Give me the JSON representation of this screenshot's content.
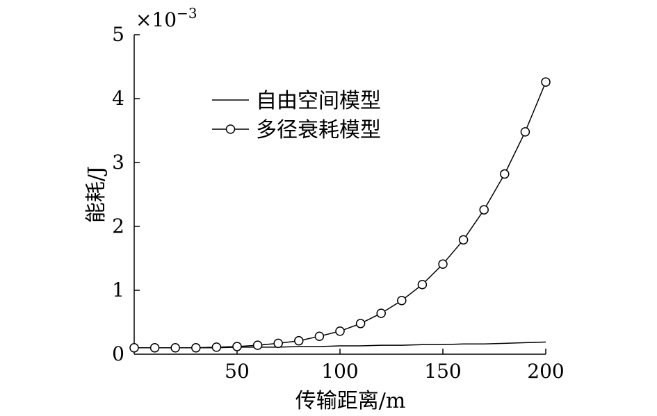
{
  "chart_data": {
    "type": "line",
    "xlabel": "传输距离/m",
    "ylabel": "能耗/J",
    "y_multiplier": "×10",
    "y_multiplier_exponent": "−3",
    "xlim": [
      0,
      200
    ],
    "ylim": [
      0,
      5
    ],
    "x_ticks": [
      50,
      100,
      150,
      200
    ],
    "x_tick_labels": [
      "50",
      "100",
      "150",
      "200"
    ],
    "y_ticks": [
      0,
      1,
      2,
      3,
      4,
      5
    ],
    "y_tick_labels": [
      "0",
      "1",
      "2",
      "3",
      "4",
      "5"
    ],
    "grid": false,
    "legend_position": "upper-left",
    "series": [
      {
        "name": "自由空间模型",
        "marker": "none",
        "color": "#000000",
        "x": [
          0,
          10,
          20,
          30,
          40,
          50,
          60,
          70,
          80,
          90,
          100,
          110,
          120,
          130,
          140,
          150,
          160,
          170,
          180,
          190,
          200
        ],
        "values": [
          0.1,
          0.1,
          0.1,
          0.1,
          0.1,
          0.11,
          0.11,
          0.11,
          0.12,
          0.12,
          0.13,
          0.13,
          0.14,
          0.14,
          0.15,
          0.15,
          0.16,
          0.16,
          0.17,
          0.18,
          0.19
        ]
      },
      {
        "name": "多径衰耗模型",
        "marker": "circle",
        "color": "#000000",
        "x": [
          0,
          10,
          20,
          30,
          40,
          50,
          60,
          70,
          80,
          90,
          100,
          110,
          120,
          130,
          140,
          150,
          160,
          170,
          180,
          190,
          200
        ],
        "values": [
          0.1,
          0.1,
          0.1,
          0.1,
          0.11,
          0.12,
          0.14,
          0.17,
          0.21,
          0.28,
          0.36,
          0.48,
          0.64,
          0.84,
          1.09,
          1.41,
          1.79,
          2.26,
          2.82,
          3.48,
          4.26
        ]
      }
    ]
  }
}
